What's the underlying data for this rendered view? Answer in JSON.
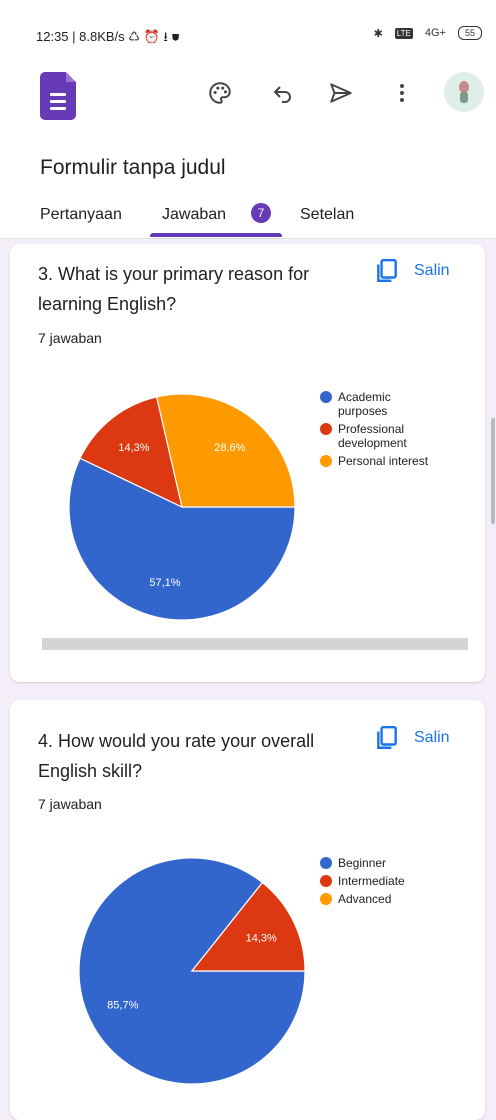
{
  "status": {
    "left": "12:35 | 8.8KB/s ♺ ⏰ ⭳ ⛊",
    "network": "4G+",
    "battery": "55"
  },
  "app": {
    "form_title": "Formulir tanpa judul",
    "tabs": [
      {
        "label": "Pertanyaan"
      },
      {
        "label": "Jawaban",
        "badge": "7"
      },
      {
        "label": "Setelan"
      }
    ],
    "active_tab": "Jawaban",
    "icons": [
      "forms-logo-icon",
      "palette-icon",
      "undo-icon",
      "send-icon",
      "more-vert-icon",
      "avatar"
    ]
  },
  "colors": {
    "purple": "#673ab7",
    "blue": "#3366cc",
    "red": "#dc3912",
    "orange": "#ff9900",
    "link": "#1a73e8"
  },
  "questions": [
    {
      "title": "3. What is your primary reason for learning English?",
      "count": "7 jawaban",
      "copy_label": "Salin"
    },
    {
      "title": "4. How would you rate your overall English skill?",
      "count": "7 jawaban",
      "copy_label": "Salin"
    }
  ],
  "chart_data": [
    {
      "type": "pie",
      "labels": [
        "Academic purposes",
        "Professional development",
        "Personal interest"
      ],
      "legend_lines": [
        [
          "Academic",
          "purposes"
        ],
        [
          "Professional",
          "development"
        ],
        [
          "Personal interest"
        ]
      ],
      "values": [
        57.1,
        14.3,
        28.6
      ],
      "data_labels": [
        "57,1%",
        "14,3%",
        "28,6%"
      ],
      "colors": [
        "#3366cc",
        "#dc3912",
        "#ff9900"
      ],
      "legend_position": "right"
    },
    {
      "type": "pie",
      "labels": [
        "Beginner",
        "Intermediate",
        "Advanced"
      ],
      "legend_lines": [
        [
          "Beginner"
        ],
        [
          "Intermediate"
        ],
        [
          "Advanced"
        ]
      ],
      "values": [
        85.7,
        14.3,
        0
      ],
      "data_labels": [
        "85,7%",
        "14,3%",
        ""
      ],
      "colors": [
        "#3366cc",
        "#dc3912",
        "#ff9900"
      ],
      "legend_position": "right"
    }
  ]
}
